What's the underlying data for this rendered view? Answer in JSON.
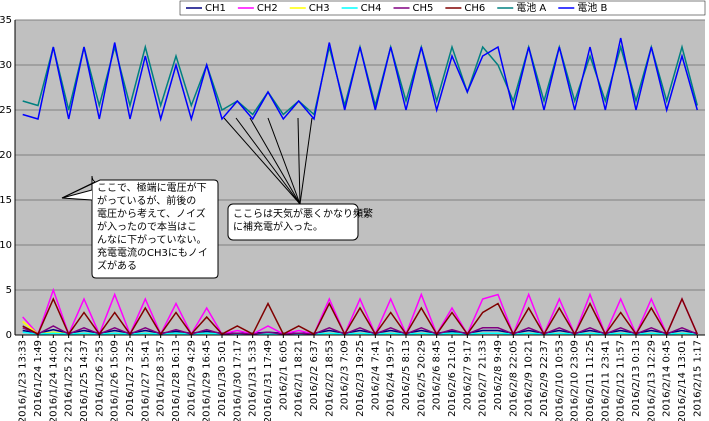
{
  "chart_data": {
    "type": "line",
    "categories": [
      "2016/1/23 13:33",
      "2016/1/24 1:49",
      "2016/1/24 14:05",
      "2016/1/25 2:21",
      "2016/1/25 14:37",
      "2016/1/26 2:53",
      "2016/1/26 15:09",
      "2016/1/27 3:25",
      "2016/1/27 15:41",
      "2016/1/28 3:57",
      "2016/1/28 16:13",
      "2016/1/29 4:29",
      "2016/1/29 16:45",
      "2016/1/30 5:01",
      "2016/1/30 17:17",
      "2016/1/31 5:33",
      "2016/1/31 17:49",
      "2016/2/1 6:05",
      "2016/2/1 18:21",
      "2016/2/2 6:37",
      "2016/2/2 18:53",
      "2016/2/3 7:09",
      "2016/2/3 19:25",
      "2016/2/4 7:41",
      "2016/2/4 19:57",
      "2016/2/5 8:13",
      "2016/2/5 20:29",
      "2016/2/6 8:45",
      "2016/2/6 21:01",
      "2016/2/7 9:17",
      "2016/2/7 21:33",
      "2016/2/8 9:49",
      "2016/2/8 22:05",
      "2016/2/9 10:21",
      "2016/2/9 22:37",
      "2016/2/10 10:53",
      "2016/2/10 23:09",
      "2016/2/11 11:25",
      "2016/2/11 23:41",
      "2016/2/12 11:57",
      "2016/2/13 0:13",
      "2016/2/13 12:29",
      "2016/2/14 0:45",
      "2016/2/14 13:01",
      "2016/2/15 1:17"
    ],
    "series": [
      {
        "name": "CH1",
        "color": "#000080",
        "values": [
          0.5,
          0.2,
          0.6,
          0.2,
          0.5,
          0.2,
          0.5,
          0.2,
          0.5,
          0.2,
          0.4,
          0.2,
          0.4,
          0.2,
          0.2,
          0.2,
          0.3,
          0.2,
          0.2,
          0.2,
          0.5,
          0.2,
          0.5,
          0.2,
          0.5,
          0.2,
          0.5,
          0.2,
          0.4,
          0.2,
          0.5,
          0.5,
          0.2,
          0.5,
          0.2,
          0.5,
          0.2,
          0.5,
          0.2,
          0.5,
          0.2,
          0.5,
          0.2,
          0.5,
          0.2
        ]
      },
      {
        "name": "CH2",
        "color": "#ff00ff",
        "values": [
          2,
          0.1,
          5,
          0.1,
          4,
          0.1,
          4.5,
          0.1,
          4,
          0.1,
          3.5,
          0.1,
          3,
          0.1,
          0.5,
          0.1,
          1,
          0.1,
          0.5,
          0.1,
          4,
          0.1,
          4,
          0.1,
          4,
          0.1,
          4.5,
          0.1,
          3,
          0.1,
          4,
          4.5,
          0.1,
          4.5,
          0.1,
          4,
          0.1,
          4.5,
          0.1,
          4,
          0.1,
          4,
          0.1,
          4,
          0.1
        ]
      },
      {
        "name": "CH3",
        "color": "#ffff00",
        "values": [
          1.5,
          0.1,
          0.3,
          0.1,
          0.2,
          0.1,
          0.2,
          0.1,
          0.2,
          0.1,
          0.2,
          0.1,
          0.2,
          0.1,
          0.1,
          0.1,
          0.1,
          0.1,
          0.1,
          0.1,
          0.2,
          0.1,
          0.2,
          0.1,
          0.2,
          0.1,
          0.2,
          0.1,
          0.2,
          0.1,
          0.2,
          0.2,
          0.1,
          0.2,
          0.1,
          0.2,
          0.1,
          0.2,
          0.1,
          0.2,
          0.1,
          0.2,
          0.1,
          0.2,
          0.1
        ]
      },
      {
        "name": "CH4",
        "color": "#00ffff",
        "values": [
          0.3,
          0.1,
          0.2,
          0.1,
          0.2,
          0.1,
          0.2,
          0.1,
          0.2,
          0.1,
          0.2,
          0.1,
          0.2,
          0.1,
          0.1,
          0.1,
          0.1,
          0.1,
          0.1,
          0.1,
          0.2,
          0.1,
          0.2,
          0.1,
          0.2,
          0.1,
          0.2,
          0.1,
          0.2,
          0.1,
          0.2,
          0.2,
          0.1,
          0.2,
          0.1,
          0.2,
          0.1,
          0.2,
          0.1,
          0.2,
          0.1,
          0.2,
          0.1,
          0.2,
          0.1
        ]
      },
      {
        "name": "CH5",
        "color": "#800080",
        "values": [
          0.8,
          0.1,
          1,
          0.1,
          0.8,
          0.1,
          0.8,
          0.1,
          0.8,
          0.1,
          0.6,
          0.1,
          0.6,
          0.1,
          0.2,
          0.1,
          0.3,
          0.1,
          0.2,
          0.1,
          0.8,
          0.1,
          0.8,
          0.1,
          0.8,
          0.1,
          0.8,
          0.1,
          0.6,
          0.1,
          0.8,
          0.8,
          0.1,
          0.8,
          0.1,
          0.8,
          0.1,
          0.8,
          0.1,
          0.8,
          0.1,
          0.8,
          0.1,
          0.8,
          0.1
        ]
      },
      {
        "name": "CH6",
        "color": "#800000",
        "values": [
          1,
          0.1,
          4,
          0.1,
          2.5,
          0.1,
          2.5,
          0.1,
          3,
          0.1,
          2.5,
          0.1,
          2,
          0.1,
          1,
          0.1,
          3.5,
          0.1,
          1,
          0.1,
          3.5,
          0.1,
          3,
          0.1,
          2.5,
          0.1,
          3,
          0.1,
          2.5,
          0.1,
          2.5,
          3.5,
          0.1,
          3,
          0.1,
          3,
          0.1,
          3.5,
          0.1,
          2.5,
          0.1,
          3,
          0.1,
          4,
          0.1
        ]
      },
      {
        "name": "電池 A",
        "color": "#008080",
        "values": [
          26,
          25.5,
          32,
          25,
          32,
          25.5,
          32,
          25.5,
          32,
          25.5,
          31,
          25.5,
          30,
          25,
          26,
          24.5,
          27,
          24.5,
          26,
          24.5,
          32,
          25.5,
          32,
          25.5,
          32,
          26,
          32,
          26,
          32,
          27,
          32,
          30,
          26,
          32,
          26,
          32,
          26,
          31,
          26,
          32,
          26,
          32,
          26,
          32,
          25.5
        ]
      },
      {
        "name": "電池 B",
        "color": "#0000ff",
        "values": [
          24.5,
          24,
          32,
          24,
          32,
          24,
          32.5,
          24,
          31,
          24,
          30,
          24,
          30,
          24,
          26,
          24,
          27,
          24,
          26,
          24,
          32.5,
          25,
          32,
          25,
          32,
          25,
          32,
          25,
          31,
          27,
          31,
          32,
          25,
          32,
          25,
          32,
          25,
          32,
          25,
          33,
          25,
          32,
          25,
          31,
          25
        ]
      }
    ],
    "ylim": [
      0,
      35
    ],
    "yticks": [
      0,
      5,
      10,
      15,
      20,
      25,
      30,
      35
    ],
    "grid": true,
    "annotations": [
      {
        "lines": [
          "ここで、極端に電圧が下",
          "がっているが、前後の",
          "電圧から考えて、ノイズ",
          "が入ったので本当はこ",
          "んなに下がっていない。",
          "充電電流のCH3にもノイ",
          "ズがある"
        ]
      },
      {
        "lines": [
          "ここらは天気が悪くかなり頻繁",
          "に補充電が入った。"
        ]
      }
    ]
  }
}
